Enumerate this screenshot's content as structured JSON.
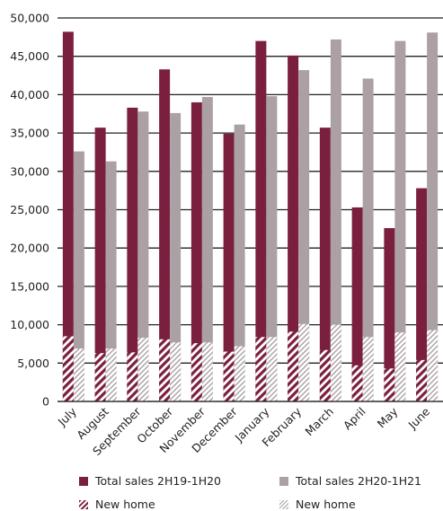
{
  "chart_data": {
    "type": "bar",
    "categories": [
      "July",
      "August",
      "September",
      "October",
      "November",
      "December",
      "January",
      "February",
      "March",
      "April",
      "May",
      "June"
    ],
    "series": [
      {
        "name": "Total sales 2H19-1H20",
        "values": [
          48200,
          35700,
          38300,
          43300,
          39000,
          34900,
          47000,
          45100,
          35700,
          25300,
          22600,
          27800
        ],
        "color": "#7b1f3e"
      },
      {
        "name": "Total sales 2H20-1H21",
        "values": [
          32600,
          31300,
          37800,
          37600,
          39700,
          36100,
          39800,
          43200,
          47200,
          42100,
          47000,
          48100
        ],
        "color": "#aaa0a6"
      },
      {
        "name": "New home",
        "values": [
          8500,
          6300,
          6400,
          8100,
          7600,
          6500,
          8400,
          9100,
          6700,
          4700,
          4300,
          5400
        ],
        "color": "#7b1f3e",
        "pattern": "hatch"
      },
      {
        "name": "New home",
        "values": [
          6900,
          6900,
          8300,
          7700,
          7700,
          7200,
          8400,
          10100,
          10000,
          8400,
          9000,
          9300
        ],
        "color": "#aaa0a6",
        "pattern": "hatch"
      }
    ],
    "yticks": [
      "0",
      "5,000",
      "10,000",
      "15,000",
      "20,000",
      "25,000",
      "30,000",
      "35,000",
      "40,000",
      "45,000",
      "50,000"
    ],
    "ylim": [
      0,
      50000
    ],
    "grid": true,
    "legend_position": "bottom"
  },
  "legend": {
    "items": [
      {
        "label": "Total sales 2H19-1H20"
      },
      {
        "label": "Total sales 2H20-1H21"
      },
      {
        "label": "New home"
      },
      {
        "label": "New home"
      }
    ]
  }
}
